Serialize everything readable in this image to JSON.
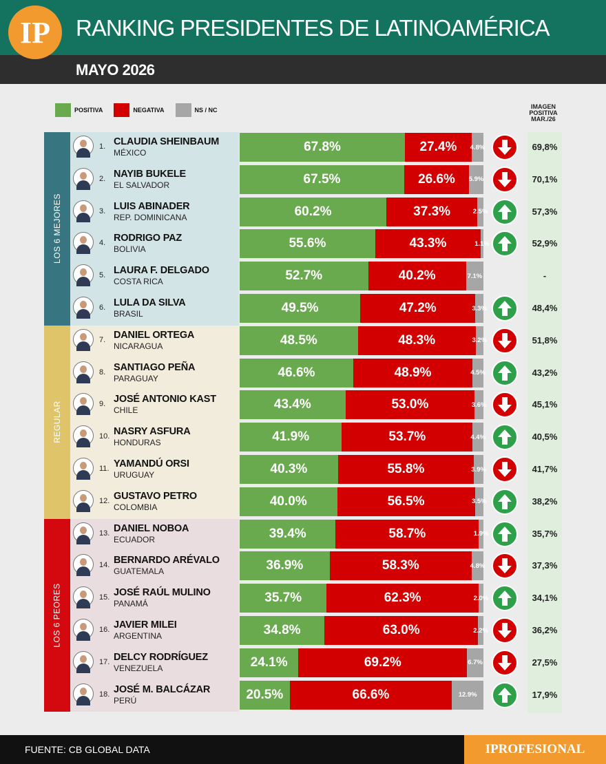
{
  "header": {
    "logo": "IP",
    "title": "RANKING PRESIDENTES DE LATINOAMÉRICA",
    "subtitle": "MAYO 2026"
  },
  "legend": {
    "positive": "POSITIVA",
    "negative": "NEGATIVA",
    "ns": "NS / NC",
    "image_header": [
      "IMAGEN",
      "POSITIVA",
      "MAR./26"
    ]
  },
  "colors": {
    "positive": "#6aaa4f",
    "negative": "#d20000",
    "ns": "#a6a6a6",
    "trend_up": "#2ea04a",
    "trend_down": "#d20000",
    "header": "#14735f",
    "group_best": "#377580",
    "group_regular": "#e0c46a",
    "group_worst": "#d4080f"
  },
  "groups": [
    {
      "label": "LOS 6 MEJORES",
      "color": "#377580",
      "bg": "#d3e4e6",
      "first": 0,
      "count": 6
    },
    {
      "label": "REGULAR",
      "color": "#e0c46a",
      "bg": "#f1ecdb",
      "first": 6,
      "count": 6
    },
    {
      "label": "LOS 6 PEORES",
      "color": "#d4080f",
      "bg": "#e9dde0",
      "first": 12,
      "count": 6
    }
  ],
  "rows": [
    {
      "rank": "1.",
      "name": "CLAUDIA SHEINBAUM",
      "country": "MÉXICO",
      "pos_label": "67.8%",
      "neg_label": "27.4%",
      "ns_label": "4.8%",
      "trend": "down",
      "prev": "69,8%"
    },
    {
      "rank": "2.",
      "name": "NAYIB BUKELE",
      "country": "EL SALVADOR",
      "pos_label": "67.5%",
      "neg_label": "26.6%",
      "ns_label": "5.9%",
      "trend": "down",
      "prev": "70,1%"
    },
    {
      "rank": "3.",
      "name": "LUIS ABINADER",
      "country": "REP. DOMINICANA",
      "pos_label": "60.2%",
      "neg_label": "37.3%",
      "ns_label": "2.5%",
      "trend": "up",
      "prev": "57,3%"
    },
    {
      "rank": "4.",
      "name": "RODRIGO PAZ",
      "country": "BOLIVIA",
      "pos_label": "55.6%",
      "neg_label": "43.3%",
      "ns_label": "1.1%",
      "trend": "up",
      "prev": "52,9%"
    },
    {
      "rank": "5.",
      "name": "LAURA F. DELGADO",
      "country": "COSTA RICA",
      "pos_label": "52.7%",
      "neg_label": "40.2%",
      "ns_label": "7.1%",
      "trend": "none",
      "prev": "-"
    },
    {
      "rank": "6.",
      "name": "LULA DA SILVA",
      "country": "BRASIL",
      "pos_label": "49.5%",
      "neg_label": "47.2%",
      "ns_label": "3.3%",
      "trend": "up",
      "prev": "48,4%"
    },
    {
      "rank": "7.",
      "name": "DANIEL ORTEGA",
      "country": "NICARAGUA",
      "pos_label": "48.5%",
      "neg_label": "48.3%",
      "ns_label": "3.2%",
      "trend": "down",
      "prev": "51,8%"
    },
    {
      "rank": "8.",
      "name": "SANTIAGO PEÑA",
      "country": "PARAGUAY",
      "pos_label": "46.6%",
      "neg_label": "48.9%",
      "ns_label": "4.5%",
      "trend": "up",
      "prev": "43,2%"
    },
    {
      "rank": "9.",
      "name": "JOSÉ ANTONIO KAST",
      "country": "CHILE",
      "pos_label": "43.4%",
      "neg_label": "53.0%",
      "ns_label": "3.6%",
      "trend": "down",
      "prev": "45,1%"
    },
    {
      "rank": "10.",
      "name": "NASRY ASFURA",
      "country": "HONDURAS",
      "pos_label": "41.9%",
      "neg_label": "53.7%",
      "ns_label": "4.4%",
      "trend": "up",
      "prev": "40,5%"
    },
    {
      "rank": "11.",
      "name": "YAMANDÚ ORSI",
      "country": "URUGUAY",
      "pos_label": "40.3%",
      "neg_label": "55.8%",
      "ns_label": "3.9%",
      "trend": "down",
      "prev": "41,7%"
    },
    {
      "rank": "12.",
      "name": "GUSTAVO PETRO",
      "country": "COLOMBIA",
      "pos_label": "40.0%",
      "neg_label": "56.5%",
      "ns_label": "3.5%",
      "trend": "up",
      "prev": "38,2%"
    },
    {
      "rank": "13.",
      "name": "DANIEL NOBOA",
      "country": "ECUADOR",
      "pos_label": "39.4%",
      "neg_label": "58.7%",
      "ns_label": "1.9%",
      "trend": "up",
      "prev": "35,7%"
    },
    {
      "rank": "14.",
      "name": "BERNARDO ARÉVALO",
      "country": "GUATEMALA",
      "pos_label": "36.9%",
      "neg_label": "58.3%",
      "ns_label": "4.8%",
      "trend": "down",
      "prev": "37,3%"
    },
    {
      "rank": "15.",
      "name": "JOSÉ RAÚL MULINO",
      "country": "PANAMÁ",
      "pos_label": "35.7%",
      "neg_label": "62.3%",
      "ns_label": "2.0%",
      "trend": "up",
      "prev": "34,1%"
    },
    {
      "rank": "16.",
      "name": "JAVIER MILEI",
      "country": "ARGENTINA",
      "pos_label": "34.8%",
      "neg_label": "63.0%",
      "ns_label": "2.2%",
      "trend": "down",
      "prev": "36,2%"
    },
    {
      "rank": "17.",
      "name": "DELCY RODRÍGUEZ",
      "country": "VENEZUELA",
      "pos_label": "24.1%",
      "neg_label": "69.2%",
      "ns_label": "6.7%",
      "trend": "down",
      "prev": "27,5%"
    },
    {
      "rank": "18.",
      "name": "JOSÉ M. BALCÁZAR",
      "country": "PERÚ",
      "pos_label": "20.5%",
      "neg_label": "66.6%",
      "ns_label": "12.9%",
      "trend": "up",
      "prev": "17,9%"
    }
  ],
  "chart_data": {
    "type": "bar",
    "stacked": true,
    "orientation": "horizontal",
    "title": "RANKING PRESIDENTES DE LATINOAMÉRICA",
    "subtitle": "MAYO 2026",
    "categories": [
      "CLAUDIA SHEINBAUM",
      "NAYIB BUKELE",
      "LUIS ABINADER",
      "RODRIGO PAZ",
      "LAURA F. DELGADO",
      "LULA DA SILVA",
      "DANIEL ORTEGA",
      "SANTIAGO PEÑA",
      "JOSÉ ANTONIO KAST",
      "NASRY ASFURA",
      "YAMANDÚ ORSI",
      "GUSTAVO PETRO",
      "DANIEL NOBOA",
      "BERNARDO ARÉVALO",
      "JOSÉ RAÚL MULINO",
      "JAVIER MILEI",
      "DELCY RODRÍGUEZ",
      "JOSÉ M. BALCÁZAR"
    ],
    "series": [
      {
        "name": "POSITIVA",
        "values": [
          67.8,
          67.5,
          60.2,
          55.6,
          52.7,
          49.5,
          48.5,
          46.6,
          43.4,
          41.9,
          40.3,
          40.0,
          39.4,
          36.9,
          35.7,
          34.8,
          24.1,
          20.5
        ]
      },
      {
        "name": "NEGATIVA",
        "values": [
          27.4,
          26.6,
          37.3,
          43.3,
          40.2,
          47.2,
          48.3,
          48.9,
          53.0,
          53.7,
          55.8,
          56.5,
          58.7,
          58.3,
          62.3,
          63.0,
          69.2,
          66.6
        ]
      },
      {
        "name": "NS / NC",
        "values": [
          4.8,
          5.9,
          2.5,
          1.1,
          7.1,
          3.3,
          3.2,
          4.5,
          3.6,
          4.4,
          3.9,
          3.5,
          1.9,
          4.8,
          2.0,
          2.2,
          6.7,
          12.9
        ]
      }
    ],
    "imagen_positiva_mar26": [
      69.8,
      70.1,
      57.3,
      52.9,
      null,
      48.4,
      51.8,
      43.2,
      45.1,
      40.5,
      41.7,
      38.2,
      35.7,
      37.3,
      34.1,
      36.2,
      27.5,
      17.9
    ],
    "xlim": [
      0,
      100
    ],
    "legend": "top-left"
  },
  "footer": {
    "source": "FUENTE: CB GLOBAL DATA",
    "brand": "IPROFESIONAL"
  }
}
